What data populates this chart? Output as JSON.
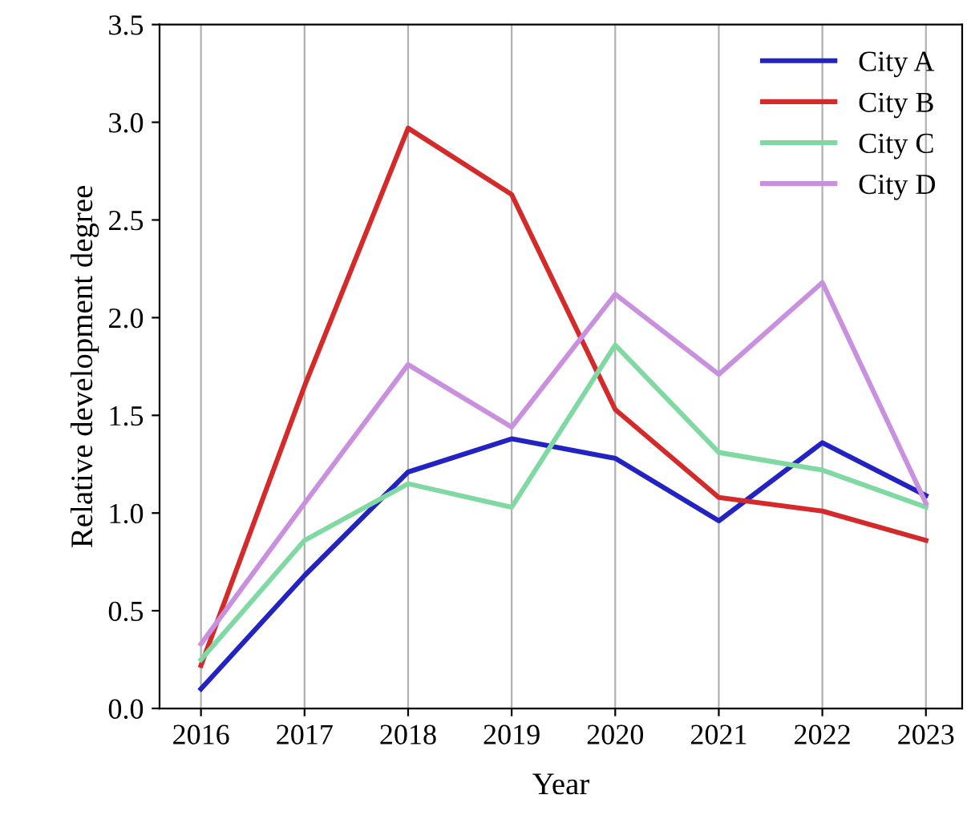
{
  "chart_data": {
    "type": "line",
    "xlabel": "Year",
    "ylabel": "Relative development degree",
    "x": [
      2016,
      2017,
      2018,
      2019,
      2020,
      2021,
      2022,
      2023
    ],
    "series": [
      {
        "name": "City A",
        "color": "#2323c4",
        "values": [
          0.1,
          0.68,
          1.21,
          1.38,
          1.28,
          0.96,
          1.36,
          1.09
        ]
      },
      {
        "name": "City B",
        "color": "#d42a2a",
        "values": [
          0.22,
          1.65,
          2.97,
          2.63,
          1.53,
          1.08,
          1.01,
          0.86
        ]
      },
      {
        "name": "City C",
        "color": "#80d9a3",
        "values": [
          0.25,
          0.86,
          1.15,
          1.03,
          1.86,
          1.31,
          1.22,
          1.03
        ]
      },
      {
        "name": "City D",
        "color": "#c990e0",
        "values": [
          0.33,
          1.05,
          1.76,
          1.44,
          2.12,
          1.71,
          2.18,
          1.05
        ]
      }
    ],
    "xlim": [
      2015.6,
      2023.35
    ],
    "xticks": [
      2016,
      2017,
      2018,
      2019,
      2020,
      2021,
      2022,
      2023
    ],
    "ylim": [
      0,
      3.5
    ],
    "yticks": [
      {
        "value": 0,
        "label": "0.0"
      },
      {
        "value": 0.5,
        "label": "0.5"
      },
      {
        "value": 1,
        "label": "1.0"
      },
      {
        "value": 1.5,
        "label": "1.5"
      },
      {
        "value": 2,
        "label": "2.0"
      },
      {
        "value": 2.5,
        "label": "2.5"
      },
      {
        "value": 3,
        "label": "3.0"
      },
      {
        "value": 3.5,
        "label": "3.5"
      }
    ],
    "grid": "x",
    "legend": "top right",
    "line_style": "solid",
    "marker": "none"
  }
}
